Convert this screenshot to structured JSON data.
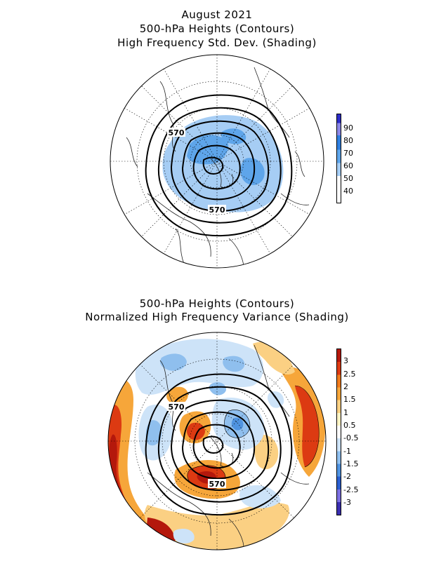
{
  "top_panel": {
    "title_lines": [
      "August 2021",
      "500-hPa Heights (Contours)",
      "High Frequency Std. Dev. (Shading)"
    ],
    "contour_labels": [
      "570",
      "570"
    ],
    "legend": {
      "labels": [
        "90",
        "80",
        "70",
        "60",
        "50",
        "40"
      ],
      "colors": [
        "#2c2cc8",
        "#8a86e6",
        "#2f7fe0",
        "#5ea5ea",
        "#a6cdf4",
        "#ffffff"
      ]
    }
  },
  "bottom_panel": {
    "title_lines": [
      "500-hPa Heights (Contours)",
      "Normalized High Frequency Variance (Shading)"
    ],
    "contour_labels": [
      "570",
      "570"
    ],
    "legend": {
      "labels": [
        "3",
        "2.5",
        "2",
        "1.5",
        "1",
        "0.5",
        "-0.5",
        "-1",
        "-1.5",
        "-2",
        "-2.5",
        "-3"
      ],
      "colors": [
        "#b4180c",
        "#dc3a12",
        "#ef7a1c",
        "#f6a63a",
        "#fbd083",
        "#fff3c4",
        "#ffffff",
        "#cde3f8",
        "#8fbfee",
        "#4f93e0",
        "#2a5fd0",
        "#7a6ee0",
        "#3a2eb0"
      ]
    }
  }
}
